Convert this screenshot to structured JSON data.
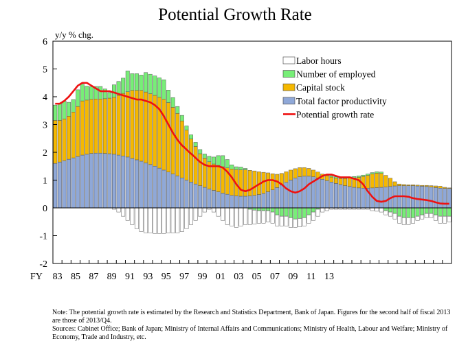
{
  "chart_data": {
    "type": "bar",
    "title": "Potential Growth Rate",
    "ylabel": "y/y % chg.",
    "ylim": [
      -2,
      6
    ],
    "yticks": [
      -2,
      -1,
      0,
      1,
      2,
      3,
      4,
      5,
      6
    ],
    "x_prefix": "FY",
    "x_tick_labels": [
      "83",
      "85",
      "87",
      "89",
      "91",
      "93",
      "95",
      "97",
      "99",
      "01",
      "03",
      "05",
      "07",
      "09",
      "11",
      "13"
    ],
    "periods_per_year": 2,
    "start_year": 1983,
    "legend": [
      "Labor hours",
      "Number of employed",
      "Capital stock",
      "Total factor productivity",
      "Potential growth rate"
    ],
    "colors": {
      "labor_hours": "#ffffff",
      "number_of_employed": "#77ee77",
      "capital_stock": "#f5b800",
      "tfp": "#8fa8d8",
      "potential": "#ee1111"
    },
    "series": [
      {
        "name": "Total factor productivity",
        "values": [
          1.6,
          1.65,
          1.7,
          1.75,
          1.8,
          1.85,
          1.9,
          1.93,
          1.96,
          1.97,
          1.97,
          1.96,
          1.95,
          1.93,
          1.9,
          1.87,
          1.83,
          1.78,
          1.73,
          1.68,
          1.62,
          1.56,
          1.5,
          1.43,
          1.36,
          1.29,
          1.22,
          1.15,
          1.08,
          1.0,
          0.93,
          0.86,
          0.8,
          0.74,
          0.68,
          0.63,
          0.58,
          0.53,
          0.49,
          0.45,
          0.43,
          0.42,
          0.42,
          0.43,
          0.45,
          0.48,
          0.52,
          0.58,
          0.65,
          0.73,
          0.82,
          0.92,
          1.0,
          1.07,
          1.12,
          1.14,
          1.14,
          1.12,
          1.08,
          1.03,
          0.98,
          0.93,
          0.88,
          0.84,
          0.8,
          0.77,
          0.74,
          0.72,
          0.71,
          0.71,
          0.72,
          0.73,
          0.74,
          0.75,
          0.77,
          0.79,
          0.8,
          0.8,
          0.8,
          0.8,
          0.79,
          0.78,
          0.77,
          0.75,
          0.73,
          0.71,
          0.7,
          0.7
        ]
      },
      {
        "name": "Capital stock",
        "values": [
          1.55,
          1.5,
          1.5,
          1.55,
          1.65,
          1.8,
          1.95,
          1.95,
          1.95,
          1.95,
          1.95,
          1.97,
          2.0,
          2.05,
          2.15,
          2.25,
          2.35,
          2.45,
          2.5,
          2.55,
          2.55,
          2.55,
          2.55,
          2.55,
          2.55,
          2.5,
          2.4,
          2.25,
          2.05,
          1.8,
          1.55,
          1.35,
          1.15,
          1.05,
          0.98,
          0.95,
          0.95,
          0.95,
          0.95,
          0.95,
          0.95,
          0.95,
          0.95,
          0.92,
          0.88,
          0.82,
          0.76,
          0.68,
          0.58,
          0.48,
          0.42,
          0.38,
          0.36,
          0.34,
          0.33,
          0.31,
          0.28,
          0.24,
          0.21,
          0.19,
          0.18,
          0.18,
          0.19,
          0.22,
          0.26,
          0.3,
          0.34,
          0.38,
          0.42,
          0.46,
          0.5,
          0.52,
          0.5,
          0.42,
          0.3,
          0.15,
          0.06,
          0.04,
          0.03,
          0.03,
          0.03,
          0.03,
          0.04,
          0.05,
          0.06,
          0.07,
          0.04,
          0.02
        ]
      },
      {
        "name": "Number of employed",
        "values": [
          0.55,
          0.6,
          0.65,
          0.5,
          0.45,
          0.6,
          0.6,
          0.5,
          0.45,
          0.45,
          0.45,
          0.35,
          0.2,
          0.45,
          0.5,
          0.55,
          0.75,
          0.6,
          0.6,
          0.55,
          0.7,
          0.7,
          0.7,
          0.7,
          0.7,
          0.45,
          0.35,
          0.25,
          0.2,
          0.15,
          0.15,
          0.15,
          0.15,
          0.15,
          0.2,
          0.25,
          0.35,
          0.4,
          0.3,
          0.15,
          0.1,
          0.1,
          0.05,
          -0.05,
          -0.08,
          -0.1,
          -0.1,
          -0.1,
          -0.15,
          -0.25,
          -0.3,
          -0.3,
          -0.35,
          -0.4,
          -0.38,
          -0.35,
          -0.25,
          -0.15,
          -0.05,
          0.0,
          0.02,
          0.05,
          0.05,
          0.05,
          0.05,
          0.05,
          0.05,
          0.05,
          0.05,
          0.05,
          0.05,
          0.05,
          0.05,
          -0.1,
          -0.15,
          -0.2,
          -0.3,
          -0.35,
          -0.35,
          -0.35,
          -0.3,
          -0.25,
          -0.2,
          -0.2,
          -0.25,
          -0.3,
          -0.3,
          -0.3
        ]
      },
      {
        "name": "Labor hours",
        "values": [
          0.0,
          0.0,
          0.0,
          0.0,
          0.0,
          0.0,
          0.0,
          0.0,
          0.0,
          0.0,
          0.0,
          0.0,
          0.0,
          -0.05,
          -0.15,
          -0.3,
          -0.45,
          -0.6,
          -0.75,
          -0.85,
          -0.9,
          -0.9,
          -0.92,
          -0.92,
          -0.92,
          -0.9,
          -0.9,
          -0.9,
          -0.85,
          -0.75,
          -0.6,
          -0.45,
          -0.3,
          -0.15,
          -0.05,
          -0.15,
          -0.3,
          -0.45,
          -0.6,
          -0.65,
          -0.7,
          -0.65,
          -0.6,
          -0.55,
          -0.5,
          -0.45,
          -0.45,
          -0.4,
          -0.4,
          -0.4,
          -0.35,
          -0.35,
          -0.35,
          -0.3,
          -0.3,
          -0.3,
          -0.3,
          -0.3,
          -0.25,
          -0.15,
          -0.1,
          -0.05,
          -0.05,
          -0.05,
          -0.05,
          -0.05,
          -0.05,
          -0.05,
          -0.05,
          -0.05,
          -0.1,
          -0.12,
          -0.15,
          -0.15,
          -0.15,
          -0.2,
          -0.25,
          -0.25,
          -0.25,
          -0.2,
          -0.15,
          -0.15,
          -0.15,
          -0.15,
          -0.2,
          -0.25,
          -0.25,
          -0.2
        ]
      },
      {
        "name": "Potential growth rate",
        "type": "line",
        "values": [
          3.75,
          3.75,
          3.85,
          4.0,
          4.2,
          4.4,
          4.5,
          4.5,
          4.4,
          4.3,
          4.2,
          4.2,
          4.2,
          4.15,
          4.1,
          4.05,
          4.0,
          3.95,
          3.9,
          3.9,
          3.85,
          3.8,
          3.7,
          3.55,
          3.3,
          3.0,
          2.7,
          2.45,
          2.25,
          2.1,
          1.95,
          1.8,
          1.65,
          1.55,
          1.5,
          1.5,
          1.5,
          1.45,
          1.3,
          1.1,
          0.85,
          0.65,
          0.6,
          0.65,
          0.75,
          0.85,
          0.95,
          1.0,
          1.0,
          0.95,
          0.85,
          0.7,
          0.6,
          0.55,
          0.6,
          0.7,
          0.85,
          0.95,
          1.05,
          1.15,
          1.2,
          1.2,
          1.15,
          1.1,
          1.1,
          1.1,
          1.05,
          1.0,
          0.85,
          0.6,
          0.4,
          0.25,
          0.22,
          0.25,
          0.35,
          0.42,
          0.42,
          0.42,
          0.4,
          0.35,
          0.32,
          0.3,
          0.28,
          0.25,
          0.2,
          0.16,
          0.15,
          0.15
        ]
      }
    ],
    "grid": false,
    "legend_placement": "top-right"
  },
  "notes": {
    "note": "Note: The potential growth rate is estimated by the Research and Statistics Department, Bank of Japan. Figures for the second half of fiscal 2013 are those of 2013/Q4.",
    "sources": "Sources: Cabinet Office; Bank of Japan; Ministry of Internal Affairs and Communications; Ministry of Health, Labour and Welfare; Ministry of Economy, Trade and Industry, etc."
  }
}
